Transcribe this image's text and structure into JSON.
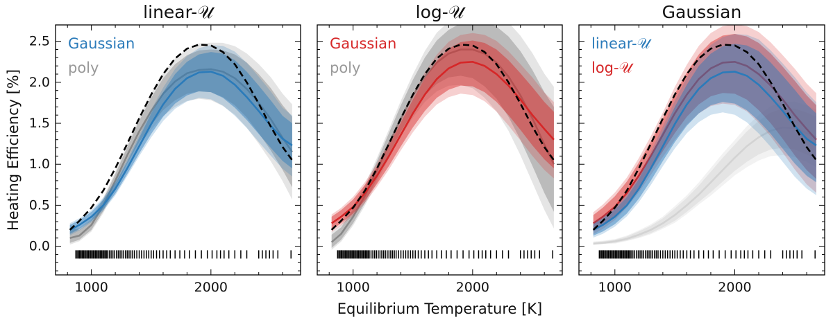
{
  "chart_data": {
    "type": "line",
    "xlabel": "Equilibrium Temperature [K]",
    "ylabel": "Heating Efficiency [%]",
    "xlim": [
      700,
      2750
    ],
    "ylim": [
      -0.35,
      2.7
    ],
    "xticks": [
      1000,
      2000
    ],
    "yticks": [
      0.0,
      0.5,
      1.0,
      1.5,
      2.0,
      2.5
    ],
    "ytick_labels": [
      "0.0",
      "0.5",
      "1.0",
      "1.5",
      "2.0",
      "2.5"
    ],
    "xtick_labels": [
      "1000",
      "2000"
    ],
    "colors": {
      "blue": "#2b7bba",
      "red": "#d62728",
      "gray": "#888888",
      "true": "#000000"
    },
    "curve_x": [
      820,
      900,
      1000,
      1100,
      1200,
      1300,
      1400,
      1500,
      1600,
      1700,
      1800,
      1900,
      2000,
      2100,
      2200,
      2300,
      2400,
      2500,
      2600,
      2680
    ],
    "true_curve": [
      0.2,
      0.31,
      0.47,
      0.68,
      0.95,
      1.25,
      1.56,
      1.85,
      2.1,
      2.29,
      2.41,
      2.46,
      2.45,
      2.37,
      2.22,
      2.0,
      1.74,
      1.46,
      1.21,
      1.05
    ],
    "rug_x": [
      870,
      880,
      890,
      900,
      905,
      915,
      925,
      935,
      945,
      955,
      965,
      975,
      985,
      995,
      1005,
      1015,
      1025,
      1035,
      1045,
      1055,
      1065,
      1075,
      1085,
      1095,
      1105,
      1115,
      1125,
      1135,
      1150,
      1165,
      1180,
      1195,
      1210,
      1225,
      1240,
      1255,
      1270,
      1285,
      1300,
      1315,
      1330,
      1345,
      1360,
      1380,
      1400,
      1420,
      1440,
      1460,
      1480,
      1500,
      1520,
      1545,
      1570,
      1600,
      1630,
      1660,
      1700,
      1740,
      1780,
      1820,
      1870,
      1920,
      1970,
      2010,
      2050,
      2080,
      2110,
      2150,
      2200,
      2250,
      2300,
      2400,
      2430,
      2460,
      2490,
      2520,
      2560,
      2670
    ],
    "rug_y": -0.1,
    "panels": [
      {
        "title": "linear-𝒰",
        "legend": [
          {
            "label": "Gaussian",
            "color": "#2b7bba"
          },
          {
            "label": "poly",
            "color": "#999999"
          }
        ],
        "series": [
          {
            "name": "poly",
            "color": "#888888",
            "median": [
              0.1,
              0.13,
              0.26,
              0.5,
              0.8,
              1.11,
              1.4,
              1.65,
              1.86,
              2.01,
              2.11,
              2.15,
              2.16,
              2.13,
              2.05,
              1.92,
              1.75,
              1.55,
              1.32,
              1.15
            ],
            "lower": [
              0.04,
              0.08,
              0.2,
              0.43,
              0.72,
              1.01,
              1.27,
              1.48,
              1.66,
              1.78,
              1.86,
              1.89,
              1.88,
              1.82,
              1.72,
              1.57,
              1.38,
              1.17,
              0.93,
              0.72
            ],
            "upper": [
              0.22,
              0.2,
              0.32,
              0.57,
              0.88,
              1.21,
              1.53,
              1.81,
              2.05,
              2.22,
              2.33,
              2.39,
              2.4,
              2.39,
              2.34,
              2.24,
              2.1,
              1.93,
              1.72,
              1.58
            ]
          },
          {
            "name": "Gaussian",
            "color": "#2b7bba",
            "median": [
              0.2,
              0.26,
              0.36,
              0.5,
              0.7,
              0.95,
              1.22,
              1.49,
              1.73,
              1.92,
              2.05,
              2.12,
              2.13,
              2.08,
              1.97,
              1.82,
              1.65,
              1.47,
              1.31,
              1.23
            ],
            "lower": [
              0.15,
              0.21,
              0.31,
              0.45,
              0.64,
              0.88,
              1.13,
              1.37,
              1.58,
              1.74,
              1.84,
              1.89,
              1.88,
              1.81,
              1.69,
              1.54,
              1.37,
              1.2,
              1.04,
              0.95
            ],
            "upper": [
              0.26,
              0.32,
              0.42,
              0.57,
              0.77,
              1.03,
              1.32,
              1.62,
              1.88,
              2.1,
              2.25,
              2.34,
              2.37,
              2.35,
              2.27,
              2.13,
              1.96,
              1.78,
              1.59,
              1.5
            ]
          }
        ]
      },
      {
        "title": "log-𝒰",
        "legend": [
          {
            "label": "Gaussian",
            "color": "#d62728"
          },
          {
            "label": "poly",
            "color": "#999999"
          }
        ],
        "series": [
          {
            "name": "poly",
            "color": "#888888",
            "median": [
              0.05,
              0.15,
              0.36,
              0.62,
              0.93,
              1.25,
              1.56,
              1.84,
              2.07,
              2.24,
              2.35,
              2.4,
              2.4,
              2.35,
              2.24,
              2.07,
              1.84,
              1.56,
              1.24,
              1.0
            ],
            "lower": [
              -0.02,
              0.08,
              0.28,
              0.53,
              0.82,
              1.12,
              1.4,
              1.64,
              1.84,
              1.98,
              2.06,
              2.08,
              2.05,
              1.95,
              1.8,
              1.58,
              1.3,
              0.98,
              0.65,
              0.42
            ],
            "upper": [
              0.14,
              0.23,
              0.45,
              0.72,
              1.04,
              1.38,
              1.72,
              2.03,
              2.3,
              2.51,
              2.64,
              2.72,
              2.74,
              2.74,
              2.68,
              2.56,
              2.38,
              2.15,
              1.88,
              1.7
            ]
          },
          {
            "name": "Gaussian",
            "color": "#d62728",
            "median": [
              0.28,
              0.36,
              0.48,
              0.65,
              0.86,
              1.1,
              1.36,
              1.62,
              1.85,
              2.04,
              2.17,
              2.24,
              2.25,
              2.2,
              2.1,
              1.96,
              1.79,
              1.6,
              1.43,
              1.3
            ],
            "lower": [
              0.2,
              0.28,
              0.4,
              0.56,
              0.76,
              0.98,
              1.22,
              1.45,
              1.65,
              1.81,
              1.91,
              1.96,
              1.95,
              1.88,
              1.76,
              1.6,
              1.42,
              1.23,
              1.06,
              0.95
            ],
            "upper": [
              0.36,
              0.44,
              0.57,
              0.75,
              0.97,
              1.23,
              1.51,
              1.79,
              2.05,
              2.26,
              2.41,
              2.49,
              2.51,
              2.48,
              2.4,
              2.27,
              2.11,
              1.94,
              1.76,
              1.64
            ]
          }
        ]
      },
      {
        "title": "Gaussian",
        "legend": [
          {
            "label": "linear-𝒰",
            "color": "#2b7bba"
          },
          {
            "label": "log-𝒰",
            "color": "#d62728"
          }
        ],
        "series": [
          {
            "name": "background",
            "color": "#cccccc",
            "median": [
              0.03,
              0.04,
              0.06,
              0.09,
              0.14,
              0.2,
              0.28,
              0.38,
              0.5,
              0.63,
              0.78,
              0.93,
              1.08,
              1.22,
              1.33,
              1.41,
              1.45,
              1.44,
              1.38,
              1.33
            ],
            "lower": [
              0.02,
              0.03,
              0.04,
              0.07,
              0.11,
              0.16,
              0.23,
              0.31,
              0.42,
              0.54,
              0.66,
              0.79,
              0.92,
              1.03,
              1.12,
              1.18,
              1.2,
              1.18,
              1.12,
              1.06
            ],
            "upper": [
              0.05,
              0.06,
              0.08,
              0.12,
              0.18,
              0.25,
              0.34,
              0.46,
              0.59,
              0.74,
              0.91,
              1.08,
              1.24,
              1.4,
              1.53,
              1.63,
              1.68,
              1.68,
              1.63,
              1.58
            ]
          },
          {
            "name": "log-𝒰",
            "color": "#d62728",
            "median": [
              0.28,
              0.36,
              0.48,
              0.65,
              0.86,
              1.1,
              1.36,
              1.62,
              1.85,
              2.04,
              2.17,
              2.24,
              2.25,
              2.2,
              2.1,
              1.96,
              1.79,
              1.6,
              1.43,
              1.3
            ],
            "lower": [
              0.18,
              0.25,
              0.36,
              0.52,
              0.71,
              0.93,
              1.16,
              1.38,
              1.58,
              1.73,
              1.83,
              1.87,
              1.86,
              1.79,
              1.66,
              1.5,
              1.31,
              1.11,
              0.93,
              0.82
            ],
            "upper": [
              0.38,
              0.47,
              0.61,
              0.79,
              1.02,
              1.28,
              1.56,
              1.86,
              2.12,
              2.34,
              2.49,
              2.57,
              2.59,
              2.56,
              2.48,
              2.35,
              2.19,
              2.02,
              1.84,
              1.72
            ]
          },
          {
            "name": "linear-𝒰",
            "color": "#2b7bba",
            "median": [
              0.2,
              0.26,
              0.36,
              0.5,
              0.7,
              0.95,
              1.22,
              1.49,
              1.73,
              1.92,
              2.05,
              2.12,
              2.13,
              2.08,
              1.97,
              1.82,
              1.65,
              1.47,
              1.31,
              1.23
            ],
            "lower": [
              0.13,
              0.18,
              0.27,
              0.4,
              0.58,
              0.8,
              1.04,
              1.27,
              1.47,
              1.62,
              1.72,
              1.76,
              1.74,
              1.66,
              1.53,
              1.37,
              1.19,
              1.01,
              0.86,
              0.78
            ],
            "upper": [
              0.27,
              0.34,
              0.45,
              0.6,
              0.82,
              1.1,
              1.4,
              1.7,
              1.97,
              2.2,
              2.35,
              2.44,
              2.47,
              2.45,
              2.38,
              2.24,
              2.08,
              1.91,
              1.73,
              1.62
            ]
          }
        ]
      }
    ]
  }
}
